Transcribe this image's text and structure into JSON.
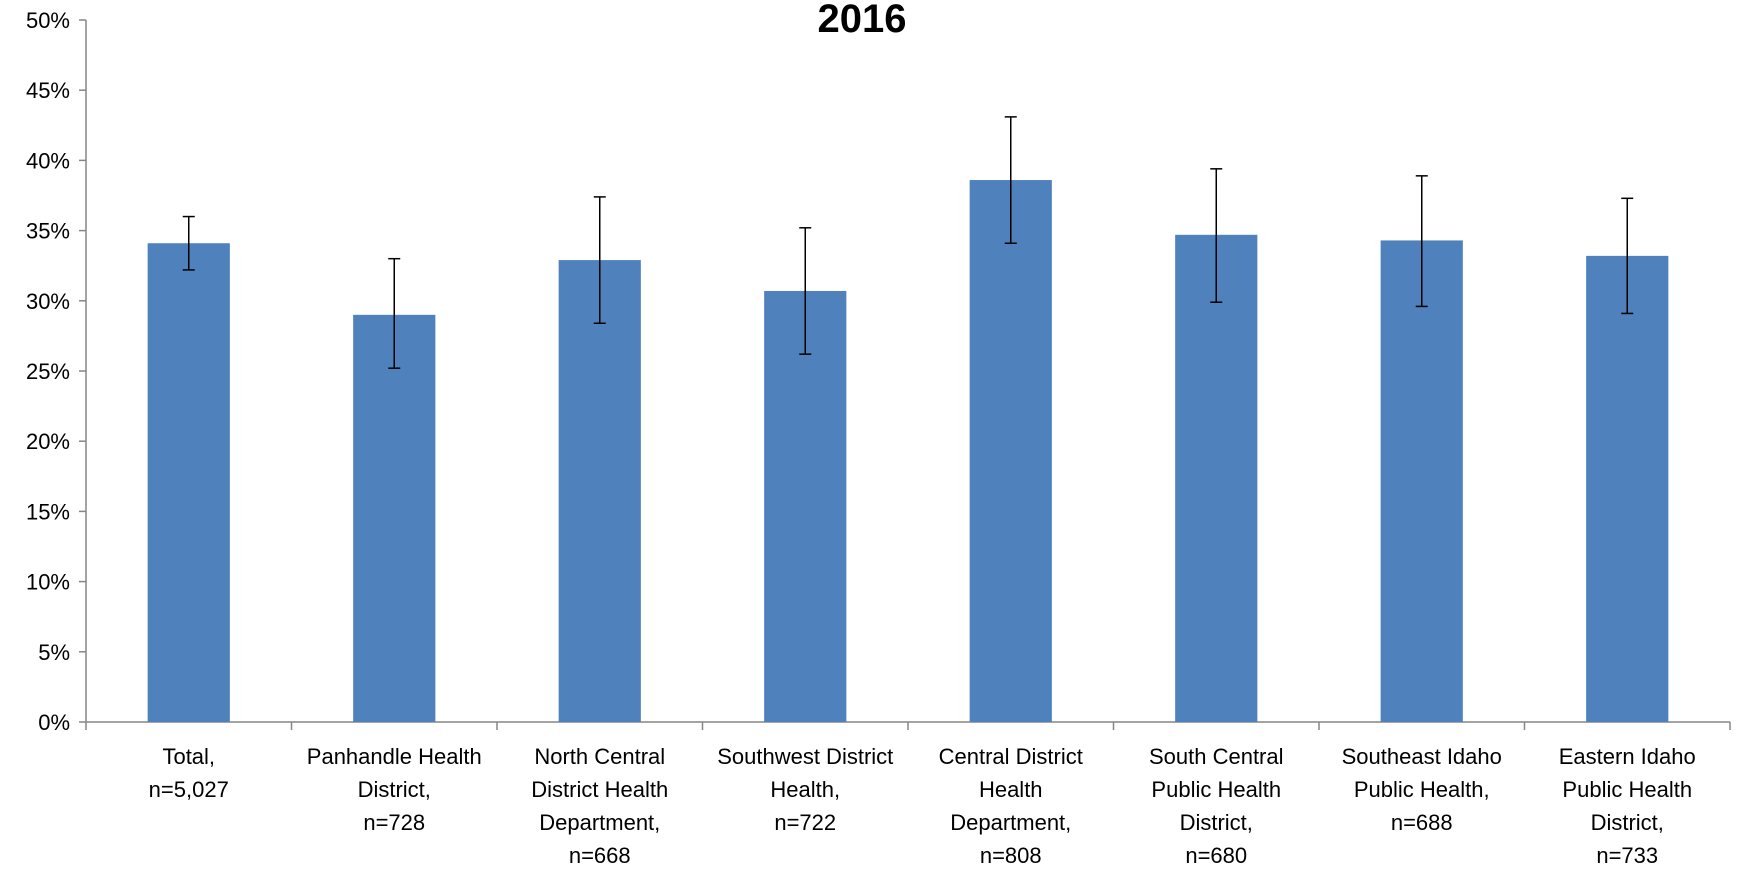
{
  "chart_data": {
    "type": "bar",
    "title": "2016",
    "xlabel": "",
    "ylabel": "",
    "ylim": [
      0,
      50
    ],
    "y_ticks": [
      "0%",
      "5%",
      "10%",
      "15%",
      "20%",
      "25%",
      "30%",
      "35%",
      "40%",
      "45%",
      "50%"
    ],
    "grid": false,
    "bar_color": "#4F81BD",
    "categories": [
      [
        "Total,",
        "n=5,027"
      ],
      [
        "Panhandle Health",
        "District,",
        "n=728"
      ],
      [
        "North Central",
        "District Health",
        "Department,",
        "n=668"
      ],
      [
        "Southwest District",
        "Health,",
        "n=722"
      ],
      [
        "Central District",
        "Health",
        "Department,",
        "n=808"
      ],
      [
        "South Central",
        "Public Health",
        "District,",
        "n=680"
      ],
      [
        "Southeast Idaho",
        "Public Health,",
        "n=688"
      ],
      [
        "Eastern Idaho",
        "Public Health",
        "District,",
        "n=733"
      ]
    ],
    "values": [
      34.1,
      29.0,
      32.9,
      30.7,
      38.6,
      34.7,
      34.3,
      33.2
    ],
    "error_low": [
      32.2,
      25.2,
      28.4,
      26.2,
      34.1,
      29.9,
      29.6,
      29.1
    ],
    "error_high": [
      36.0,
      33.0,
      37.4,
      35.2,
      43.1,
      39.4,
      38.9,
      37.3
    ]
  }
}
